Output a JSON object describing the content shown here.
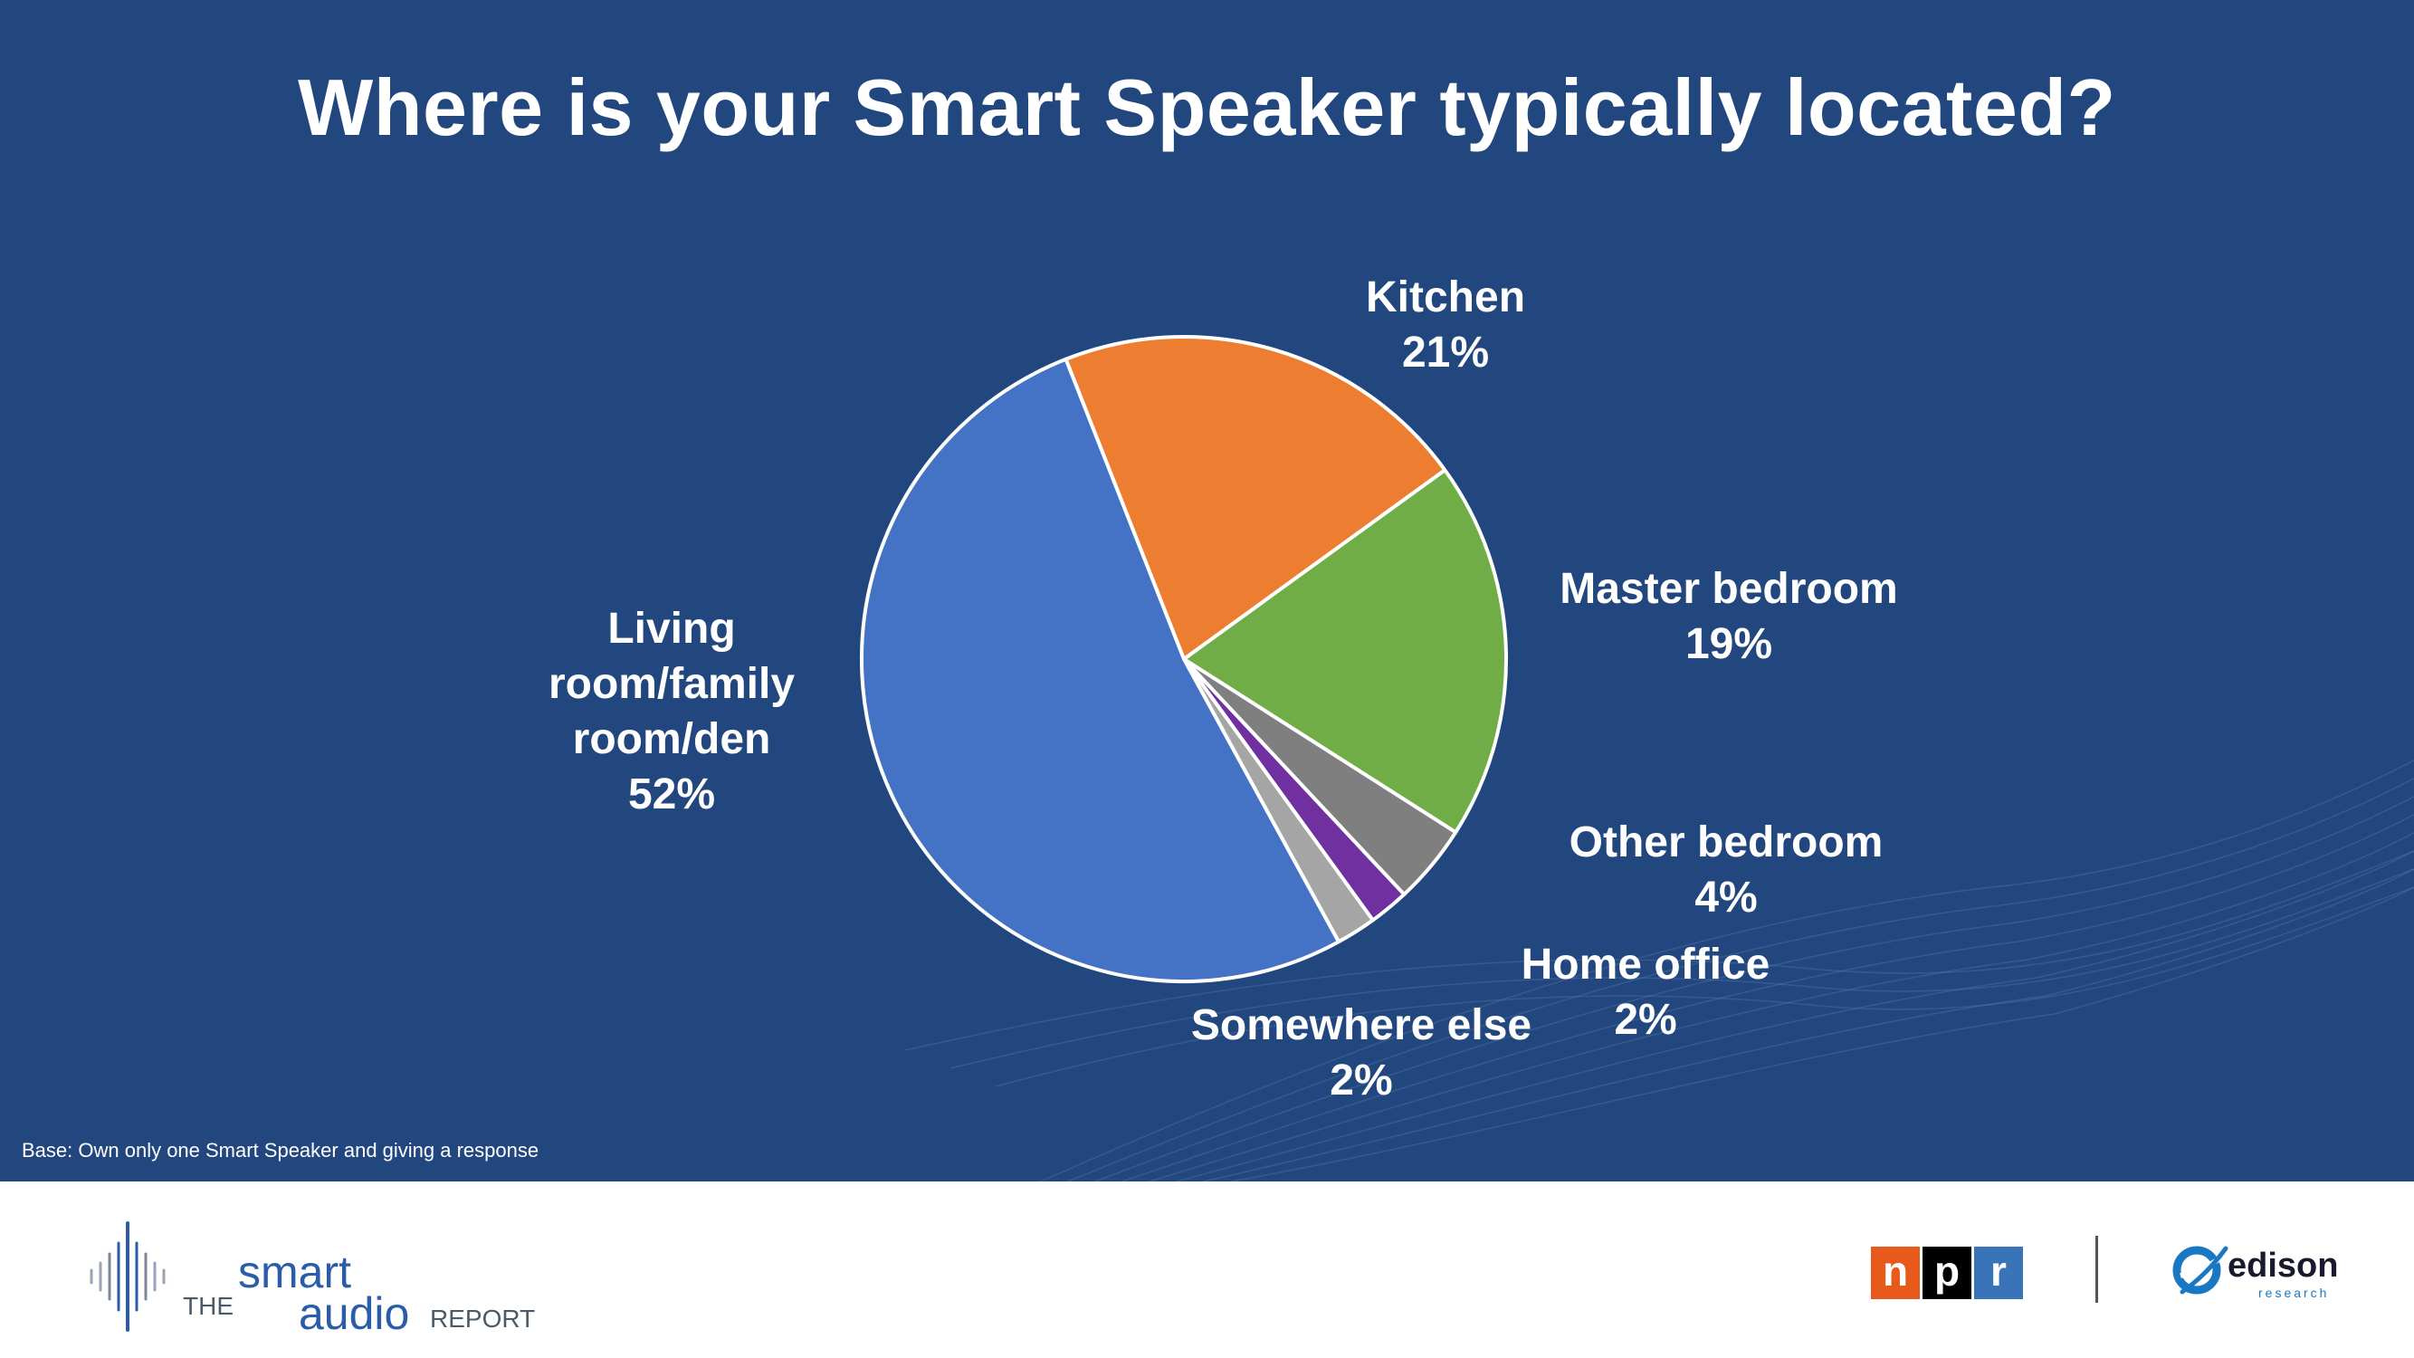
{
  "chart_data": {
    "type": "pie",
    "title": "Where is your Smart Speaker typically located?",
    "slices": [
      {
        "label": "Kitchen",
        "value": 21,
        "value_label": "21%",
        "color": "#ed7d31"
      },
      {
        "label": "Master bedroom",
        "value": 19,
        "value_label": "19%",
        "color": "#70ad47"
      },
      {
        "label": "Other bedroom",
        "value": 4,
        "value_label": "4%",
        "color": "#7f7f7f"
      },
      {
        "label": "Home office",
        "value": 2,
        "value_label": "2%",
        "color": "#7030a0"
      },
      {
        "label": "Somewhere else",
        "value": 2,
        "value_label": "2%",
        "color": "#a5a5a5"
      },
      {
        "label": "Living room/family room/den",
        "label_lines": [
          "Living",
          "room/family",
          "room/den"
        ],
        "value": 52,
        "value_label": "52%",
        "color": "#4472c4"
      }
    ],
    "start_angle_deg": -21.5,
    "direction": "clockwise"
  },
  "note": "Base: Own only one Smart Speaker and giving a response",
  "colors": {
    "background": "#21477e",
    "footer": "#ffffff",
    "npr_n": "#e8591c",
    "npr_p": "#000000",
    "npr_r": "#3a74b8"
  },
  "footer": {
    "sar": {
      "the": "THE",
      "smart": "smart",
      "audio": "audio",
      "report": "REPORT"
    },
    "npr": {
      "n": "n",
      "p": "p",
      "r": "r"
    },
    "edison": {
      "word": "edison",
      "sub": "research"
    }
  }
}
